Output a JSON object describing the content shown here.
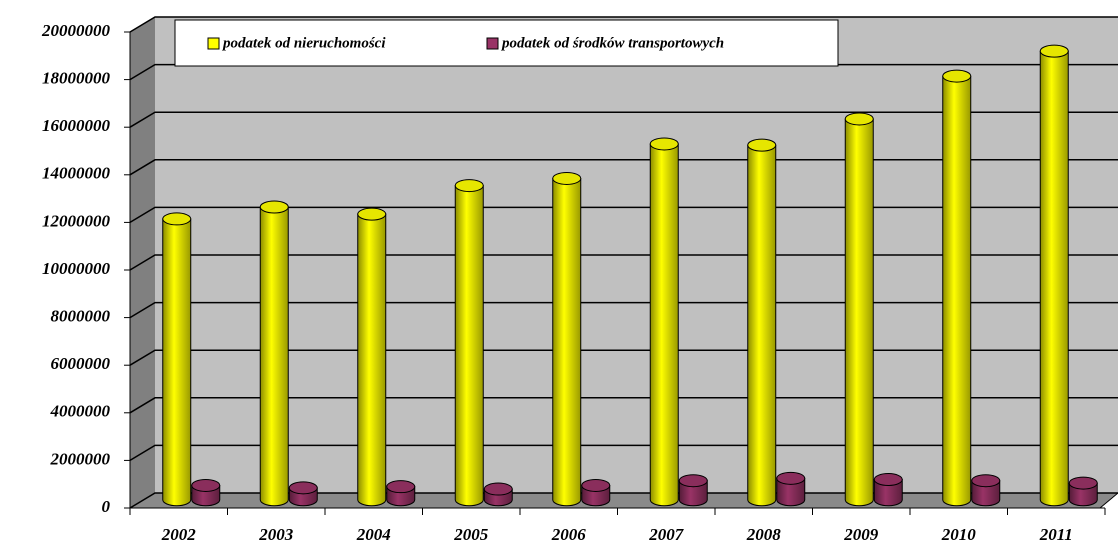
{
  "chart_data": {
    "type": "bar3d",
    "categories": [
      "2002",
      "2003",
      "2004",
      "2005",
      "2006",
      "2007",
      "2008",
      "2009",
      "2010",
      "2011"
    ],
    "series": [
      {
        "name": "podatek od nieruchomości",
        "color": "#ffff00",
        "values": [
          11800000,
          12300000,
          12000000,
          13200000,
          13500000,
          14950000,
          14900000,
          16000000,
          17800000,
          18850000
        ]
      },
      {
        "name": "podatek od środków transportowych",
        "color": "#993366",
        "values": [
          600000,
          500000,
          550000,
          450000,
          600000,
          800000,
          900000,
          850000,
          800000,
          700000
        ]
      }
    ],
    "ylim": [
      0,
      20000000
    ],
    "yticks": [
      0,
      2000000,
      4000000,
      6000000,
      8000000,
      10000000,
      12000000,
      14000000,
      16000000,
      18000000,
      20000000
    ],
    "grid": true,
    "legend": "top"
  }
}
